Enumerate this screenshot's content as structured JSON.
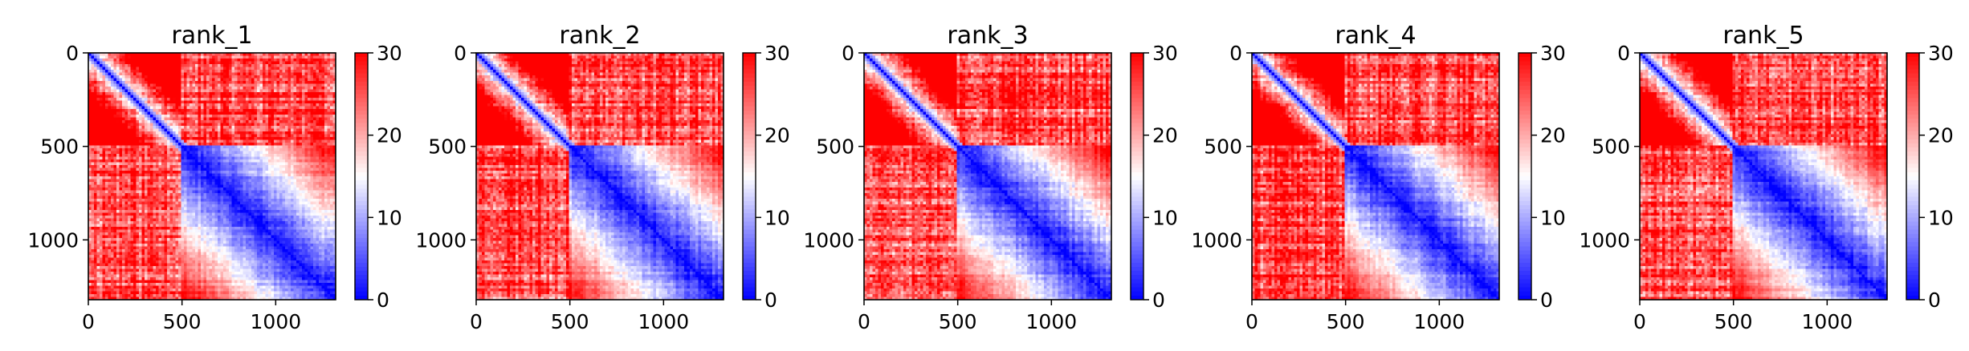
{
  "chart_data": [
    {
      "type": "heatmap",
      "title": "rank_1",
      "xlim": [
        0,
        1320
      ],
      "ylim": [
        1320,
        0
      ],
      "xticks": [
        0,
        500,
        1000
      ],
      "yticks": [
        0,
        500,
        1000
      ],
      "xtick_labels": [
        "0",
        "500",
        "1000"
      ],
      "ytick_labels": [
        "0",
        "500",
        "1000"
      ],
      "colorbar": {
        "range": [
          0,
          30
        ],
        "ticks": [
          0,
          10,
          20,
          30
        ],
        "tick_labels": [
          "0",
          "10",
          "20",
          "30"
        ],
        "colormap": [
          "#0000ff",
          "#ffffff",
          "#ff0000"
        ]
      },
      "block_boundary": 490,
      "seed": 11
    },
    {
      "type": "heatmap",
      "title": "rank_2",
      "xlim": [
        0,
        1320
      ],
      "ylim": [
        1320,
        0
      ],
      "xticks": [
        0,
        500,
        1000
      ],
      "yticks": [
        0,
        500,
        1000
      ],
      "xtick_labels": [
        "0",
        "500",
        "1000"
      ],
      "ytick_labels": [
        "0",
        "500",
        "1000"
      ],
      "colorbar": {
        "range": [
          0,
          30
        ],
        "ticks": [
          0,
          10,
          20,
          30
        ],
        "tick_labels": [
          "0",
          "10",
          "20",
          "30"
        ],
        "colormap": [
          "#0000ff",
          "#ffffff",
          "#ff0000"
        ]
      },
      "block_boundary": 490,
      "seed": 23
    },
    {
      "type": "heatmap",
      "title": "rank_3",
      "xlim": [
        0,
        1320
      ],
      "ylim": [
        1320,
        0
      ],
      "xticks": [
        0,
        500,
        1000
      ],
      "yticks": [
        0,
        500,
        1000
      ],
      "xtick_labels": [
        "0",
        "500",
        "1000"
      ],
      "ytick_labels": [
        "0",
        "500",
        "1000"
      ],
      "colorbar": {
        "range": [
          0,
          30
        ],
        "ticks": [
          0,
          10,
          20,
          30
        ],
        "tick_labels": [
          "0",
          "10",
          "20",
          "30"
        ],
        "colormap": [
          "#0000ff",
          "#ffffff",
          "#ff0000"
        ]
      },
      "block_boundary": 490,
      "seed": 37
    },
    {
      "type": "heatmap",
      "title": "rank_4",
      "xlim": [
        0,
        1320
      ],
      "ylim": [
        1320,
        0
      ],
      "xticks": [
        0,
        500,
        1000
      ],
      "yticks": [
        0,
        500,
        1000
      ],
      "xtick_labels": [
        "0",
        "500",
        "1000"
      ],
      "ytick_labels": [
        "0",
        "500",
        "1000"
      ],
      "colorbar": {
        "range": [
          0,
          30
        ],
        "ticks": [
          0,
          10,
          20,
          30
        ],
        "tick_labels": [
          "0",
          "10",
          "20",
          "30"
        ],
        "colormap": [
          "#0000ff",
          "#ffffff",
          "#ff0000"
        ]
      },
      "block_boundary": 490,
      "seed": 41
    },
    {
      "type": "heatmap",
      "title": "rank_5",
      "xlim": [
        0,
        1320
      ],
      "ylim": [
        1320,
        0
      ],
      "xticks": [
        0,
        500,
        1000
      ],
      "yticks": [
        0,
        500,
        1000
      ],
      "xtick_labels": [
        "0",
        "500",
        "1000"
      ],
      "ytick_labels": [
        "0",
        "500",
        "1000"
      ],
      "colorbar": {
        "range": [
          0,
          30
        ],
        "ticks": [
          0,
          10,
          20,
          30
        ],
        "tick_labels": [
          "0",
          "10",
          "20",
          "30"
        ],
        "colormap": [
          "#0000ff",
          "#ffffff",
          "#ff0000"
        ]
      },
      "block_boundary": 490,
      "seed": 53
    }
  ]
}
